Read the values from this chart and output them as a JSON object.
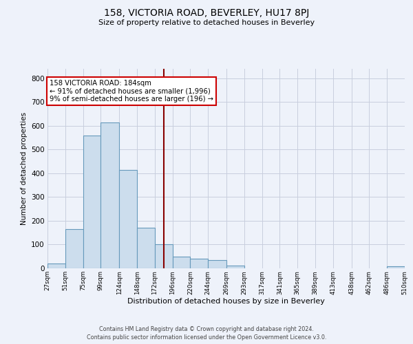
{
  "title": "158, VICTORIA ROAD, BEVERLEY, HU17 8PJ",
  "subtitle": "Size of property relative to detached houses in Beverley",
  "xlabel": "Distribution of detached houses by size in Beverley",
  "ylabel": "Number of detached properties",
  "bar_color": "#ccdded",
  "bar_edge_color": "#6699bb",
  "background_color": "#eef2fa",
  "grid_color": "#c8cede",
  "vline_x": 184,
  "vline_color": "#880000",
  "annotation_title": "158 VICTORIA ROAD: 184sqm",
  "annotation_line1": "← 91% of detached houses are smaller (1,996)",
  "annotation_line2": "9% of semi-detached houses are larger (196) →",
  "bin_edges": [
    27,
    51,
    75,
    99,
    124,
    148,
    172,
    196,
    220,
    244,
    269,
    293,
    317,
    341,
    365,
    389,
    413,
    438,
    462,
    486,
    510
  ],
  "bin_heights": [
    20,
    165,
    560,
    615,
    415,
    170,
    100,
    50,
    40,
    35,
    12,
    0,
    0,
    0,
    0,
    0,
    0,
    0,
    0,
    8
  ],
  "ylim": [
    0,
    840
  ],
  "yticks": [
    0,
    100,
    200,
    300,
    400,
    500,
    600,
    700,
    800
  ],
  "footer1": "Contains HM Land Registry data © Crown copyright and database right 2024.",
  "footer2": "Contains public sector information licensed under the Open Government Licence v3.0."
}
